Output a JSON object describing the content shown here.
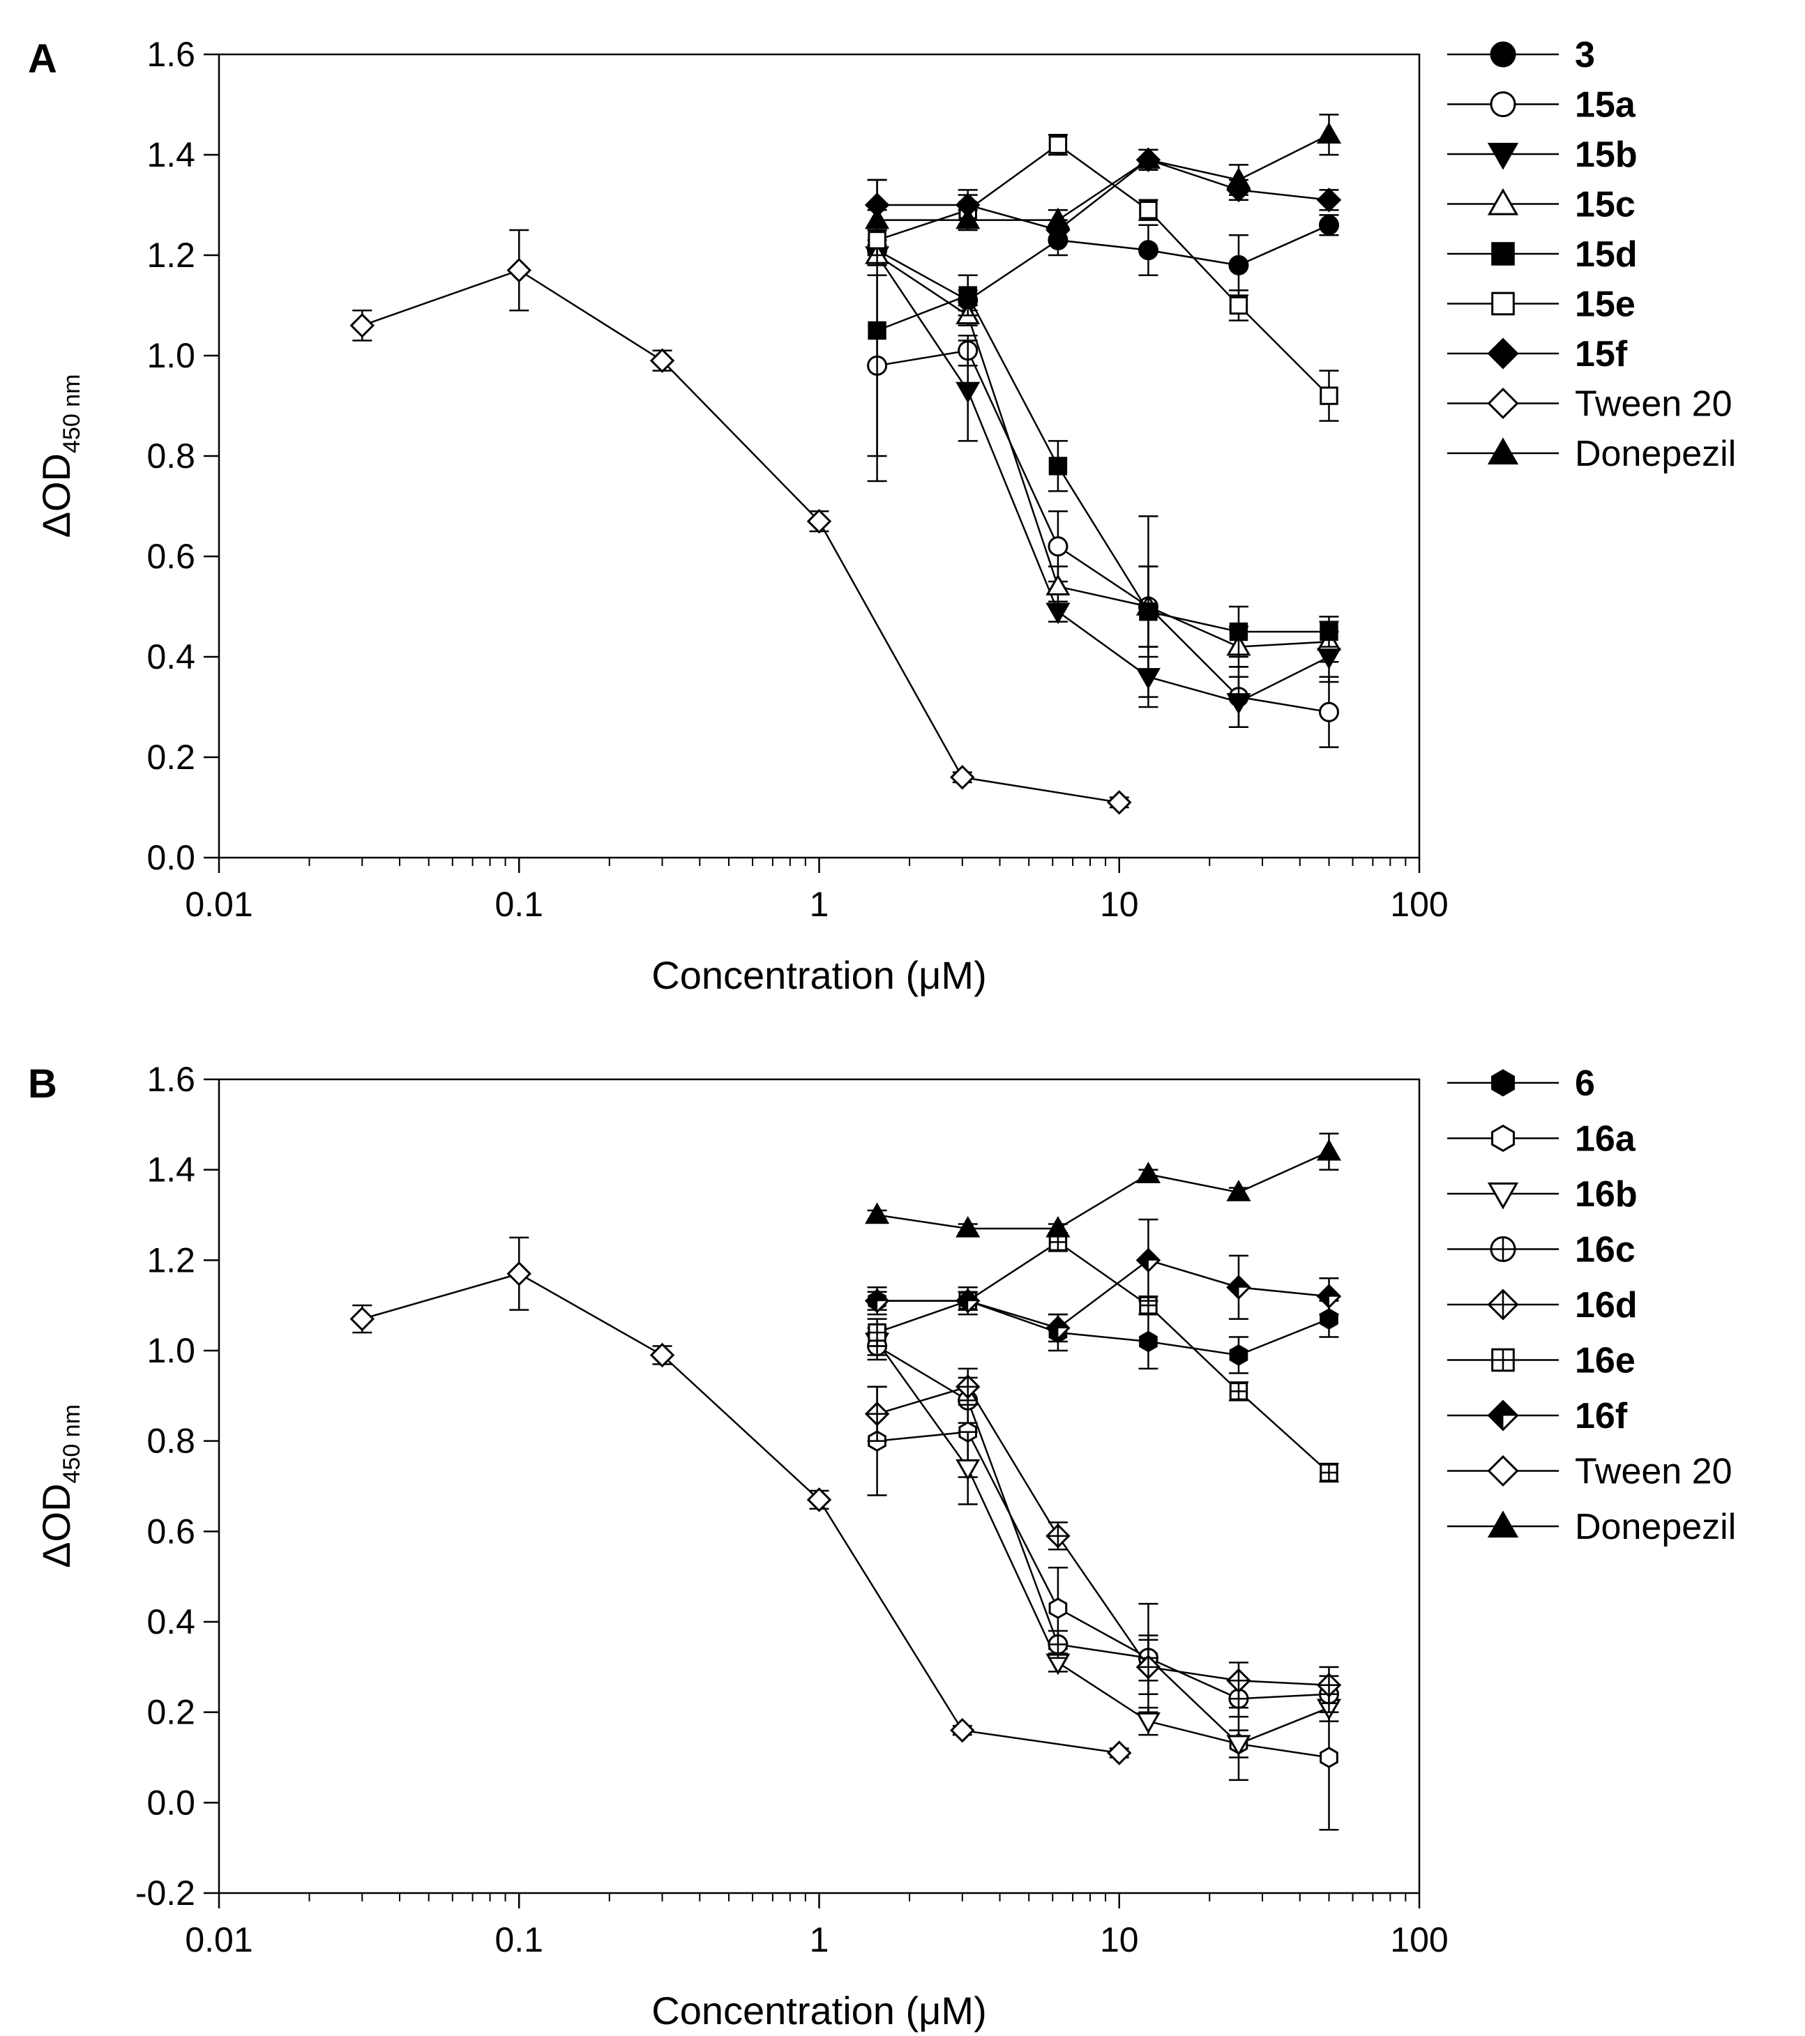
{
  "figure": {
    "panels": [
      {
        "id": "A",
        "label": "A"
      },
      {
        "id": "B",
        "label": "B"
      }
    ]
  },
  "chart_data": [
    {
      "panel": "A",
      "type": "line",
      "xscale": "log",
      "xlabel": "Concentration (μM)",
      "ylabel": "ΔOD",
      "ylabel_subscript": "450 nm",
      "xlim": [
        0.01,
        100
      ],
      "ylim": [
        0.0,
        1.6
      ],
      "xticks": [
        {
          "value": 0.01,
          "label": "0.01"
        },
        {
          "value": 0.1,
          "label": "0.1"
        },
        {
          "value": 1,
          "label": "1"
        },
        {
          "value": 10,
          "label": "10"
        },
        {
          "value": 100,
          "label": "100"
        }
      ],
      "yticks": [
        {
          "value": 0.0,
          "label": "0.0"
        },
        {
          "value": 0.2,
          "label": "0.2"
        },
        {
          "value": 0.4,
          "label": "0.4"
        },
        {
          "value": 0.6,
          "label": "0.6"
        },
        {
          "value": 0.8,
          "label": "0.8"
        },
        {
          "value": 1.0,
          "label": "1.0"
        },
        {
          "value": 1.2,
          "label": "1.2"
        },
        {
          "value": 1.4,
          "label": "1.4"
        },
        {
          "value": 1.6,
          "label": "1.6"
        }
      ],
      "legend": "right",
      "series": [
        {
          "name": "3",
          "bold": true,
          "marker": "circle",
          "fill": "black",
          "x": [
            1.56,
            3.13,
            6.25,
            12.5,
            25,
            50
          ],
          "y": [
            1.21,
            1.11,
            1.23,
            1.21,
            1.18,
            1.26
          ],
          "err": [
            0.02,
            0.02,
            0.03,
            0.05,
            0.06,
            0.02
          ]
        },
        {
          "name": "15a",
          "bold": true,
          "marker": "circle",
          "fill": "white",
          "x": [
            1.56,
            3.13,
            6.25,
            12.5,
            25,
            50
          ],
          "y": [
            0.98,
            1.01,
            0.62,
            0.5,
            0.32,
            0.29
          ],
          "err": [
            0.18,
            0.03,
            0.07,
            0.18,
            0.06,
            0.07
          ]
        },
        {
          "name": "15b",
          "bold": true,
          "marker": "triangle-down",
          "fill": "black",
          "x": [
            1.56,
            3.13,
            6.25,
            12.5,
            25,
            50
          ],
          "y": [
            1.2,
            0.93,
            0.49,
            0.36,
            0.31,
            0.4
          ],
          "err": [
            0.02,
            0.1,
            0.02,
            0.06,
            0.05,
            0.05
          ]
        },
        {
          "name": "15c",
          "bold": true,
          "marker": "triangle-up",
          "fill": "white",
          "x": [
            1.56,
            3.13,
            6.25,
            12.5,
            25,
            50
          ],
          "y": [
            1.2,
            1.08,
            0.54,
            0.5,
            0.42,
            0.43
          ],
          "err": [
            0.02,
            0.02,
            0.04,
            0.08,
            0.04,
            0.04
          ]
        },
        {
          "name": "15d",
          "bold": true,
          "marker": "square",
          "fill": "black",
          "x": [
            1.56,
            3.13,
            6.25,
            12.5,
            25,
            50
          ],
          "y": [
            1.05,
            1.12,
            0.78,
            0.49,
            0.45,
            0.45
          ],
          "err": [
            0.3,
            0.04,
            0.05,
            0.09,
            0.05,
            0.03
          ]
        },
        {
          "name": "15e",
          "bold": true,
          "marker": "square",
          "fill": "white",
          "x": [
            1.56,
            3.13,
            6.25,
            12.5,
            25,
            50
          ],
          "y": [
            1.23,
            1.29,
            1.42,
            1.29,
            1.1,
            0.92
          ],
          "err": [
            0.03,
            0.03,
            0.02,
            0.02,
            0.03,
            0.05
          ]
        },
        {
          "name": "15f",
          "bold": true,
          "marker": "diamond",
          "fill": "black",
          "x": [
            1.56,
            3.13,
            6.25,
            12.5,
            25,
            50
          ],
          "y": [
            1.3,
            1.3,
            1.25,
            1.39,
            1.33,
            1.31
          ],
          "err": [
            0.05,
            0.03,
            0.02,
            0.02,
            0.02,
            0.02
          ]
        },
        {
          "name": "Tween 20",
          "bold": false,
          "marker": "diamond",
          "fill": "white",
          "x": [
            0.03,
            0.1,
            0.3,
            1,
            3,
            10
          ],
          "y": [
            1.06,
            1.17,
            0.99,
            0.67,
            0.16,
            0.11
          ],
          "err": [
            0.03,
            0.08,
            0.02,
            0.02,
            0.01,
            0.01
          ]
        },
        {
          "name": "Donepezil",
          "bold": false,
          "marker": "triangle-up",
          "fill": "black",
          "x": [
            1.56,
            3.13,
            6.25,
            12.5,
            25,
            50
          ],
          "y": [
            1.27,
            1.27,
            1.27,
            1.39,
            1.35,
            1.44
          ],
          "err": [
            0.02,
            0.02,
            0.02,
            0.02,
            0.03,
            0.04
          ]
        }
      ]
    },
    {
      "panel": "B",
      "type": "line",
      "xscale": "log",
      "xlabel": "Concentration (μM)",
      "ylabel": "ΔOD",
      "ylabel_subscript": "450 nm",
      "xlim": [
        0.01,
        100
      ],
      "ylim": [
        -0.2,
        1.6
      ],
      "xticks": [
        {
          "value": 0.01,
          "label": "0.01"
        },
        {
          "value": 0.1,
          "label": "0.1"
        },
        {
          "value": 1,
          "label": "1"
        },
        {
          "value": 10,
          "label": "10"
        },
        {
          "value": 100,
          "label": "100"
        }
      ],
      "yticks": [
        {
          "value": -0.2,
          "label": "-0.2"
        },
        {
          "value": 0.0,
          "label": "0.0"
        },
        {
          "value": 0.2,
          "label": "0.2"
        },
        {
          "value": 0.4,
          "label": "0.4"
        },
        {
          "value": 0.6,
          "label": "0.6"
        },
        {
          "value": 0.8,
          "label": "0.8"
        },
        {
          "value": 1.0,
          "label": "1.0"
        },
        {
          "value": 1.2,
          "label": "1.2"
        },
        {
          "value": 1.4,
          "label": "1.4"
        },
        {
          "value": 1.6,
          "label": "1.6"
        }
      ],
      "legend": "right",
      "series": [
        {
          "name": "6",
          "bold": true,
          "marker": "hexagon",
          "fill": "black",
          "x": [
            1.56,
            3.13,
            6.25,
            12.5,
            25,
            50
          ],
          "y": [
            1.11,
            1.11,
            1.04,
            1.02,
            0.99,
            1.07
          ],
          "err": [
            0.02,
            0.02,
            0.04,
            0.06,
            0.04,
            0.04
          ]
        },
        {
          "name": "16a",
          "bold": true,
          "marker": "hexagon",
          "fill": "white",
          "x": [
            1.56,
            3.13,
            6.25,
            12.5,
            25,
            50
          ],
          "y": [
            0.8,
            0.82,
            0.43,
            0.32,
            0.13,
            0.1
          ],
          "err": [
            0.12,
            0.1,
            0.09,
            0.12,
            0.08,
            0.16
          ]
        },
        {
          "name": "16b",
          "bold": true,
          "marker": "triangle-down",
          "fill": "white",
          "x": [
            1.56,
            3.13,
            6.25,
            12.5,
            25,
            50
          ],
          "y": [
            1.02,
            0.74,
            0.31,
            0.18,
            0.13,
            0.21
          ],
          "err": [
            0.03,
            0.08,
            0.02,
            0.03,
            0.03,
            0.03
          ]
        },
        {
          "name": "16c",
          "bold": true,
          "marker": "circle-plus",
          "fill": "white",
          "x": [
            1.56,
            3.13,
            6.25,
            12.5,
            25,
            50
          ],
          "y": [
            1.01,
            0.89,
            0.35,
            0.32,
            0.23,
            0.24
          ],
          "err": [
            0.03,
            0.05,
            0.03,
            0.05,
            0.04,
            0.04
          ]
        },
        {
          "name": "16d",
          "bold": true,
          "marker": "diamond-plus",
          "fill": "white",
          "x": [
            1.56,
            3.13,
            6.25,
            12.5,
            25,
            50
          ],
          "y": [
            0.86,
            0.92,
            0.59,
            0.3,
            0.27,
            0.26
          ],
          "err": [
            0.06,
            0.04,
            0.03,
            0.06,
            0.04,
            0.04
          ]
        },
        {
          "name": "16e",
          "bold": true,
          "marker": "square-plus",
          "fill": "white",
          "x": [
            1.56,
            3.13,
            6.25,
            12.5,
            25,
            50
          ],
          "y": [
            1.04,
            1.11,
            1.24,
            1.1,
            0.91,
            0.73
          ],
          "err": [
            0.03,
            0.02,
            0.02,
            0.02,
            0.02,
            0.02
          ]
        },
        {
          "name": "16f",
          "bold": true,
          "marker": "diamond-half",
          "fill": "black",
          "x": [
            1.56,
            3.13,
            6.25,
            12.5,
            25,
            50
          ],
          "y": [
            1.11,
            1.11,
            1.05,
            1.2,
            1.14,
            1.12
          ],
          "err": [
            0.03,
            0.03,
            0.03,
            0.09,
            0.07,
            0.04
          ]
        },
        {
          "name": "Tween 20",
          "bold": false,
          "marker": "diamond",
          "fill": "white",
          "x": [
            0.03,
            0.1,
            0.3,
            1,
            3,
            10
          ],
          "y": [
            1.07,
            1.17,
            0.99,
            0.67,
            0.16,
            0.11
          ],
          "err": [
            0.03,
            0.08,
            0.02,
            0.02,
            0.01,
            0.01
          ]
        },
        {
          "name": "Donepezil",
          "bold": false,
          "marker": "triangle-up",
          "fill": "black",
          "x": [
            1.56,
            3.13,
            6.25,
            12.5,
            25,
            50
          ],
          "y": [
            1.3,
            1.27,
            1.27,
            1.39,
            1.35,
            1.44
          ],
          "err": [
            0.01,
            0.01,
            0.01,
            0.01,
            0.01,
            0.04
          ]
        }
      ]
    }
  ]
}
